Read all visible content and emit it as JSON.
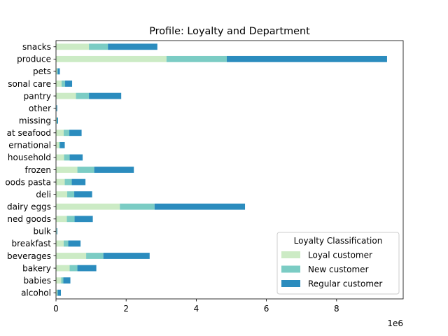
{
  "chart_data": {
    "type": "bar",
    "orientation": "horizontal",
    "stacked": true,
    "title": "Profile: Loyalty and Department",
    "xlabel": "",
    "ylabel": "",
    "x_scale_label": "1e6",
    "xlim": [
      0,
      9900000
    ],
    "x_ticks": [
      0,
      2000000,
      4000000,
      6000000,
      8000000
    ],
    "x_tick_labels": [
      "0",
      "2",
      "4",
      "6",
      "8"
    ],
    "grid": false,
    "legend": {
      "title": "Loyalty Classification",
      "placement": "lower-right"
    },
    "categories": [
      "alcohol",
      "babies",
      "bakery",
      "beverages",
      "breakfast",
      "bulk",
      "canned goods",
      "dairy eggs",
      "deli",
      "dry goods pasta",
      "frozen",
      "household",
      "international",
      "meat seafood",
      "missing",
      "other",
      "pantry",
      "personal care",
      "pets",
      "produce",
      "snacks"
    ],
    "category_labels": [
      "alcohol",
      "babies",
      "bakery",
      "beverages",
      "breakfast",
      "bulk",
      "ned goods",
      "dairy eggs",
      "deli",
      "oods pasta",
      "frozen",
      "household",
      "ernational",
      "at seafood",
      "missing",
      "other",
      "pantry",
      "sonal care",
      "pets",
      "produce",
      "snacks"
    ],
    "series": [
      {
        "name": "Loyal customer",
        "color": "#ccebc5",
        "values": [
          30000,
          150000,
          390000,
          860000,
          220000,
          15000,
          310000,
          1820000,
          320000,
          250000,
          610000,
          230000,
          80000,
          220000,
          20000,
          10000,
          570000,
          160000,
          30000,
          3150000,
          940000
        ]
      },
      {
        "name": "New customer",
        "color": "#7bccc4",
        "values": [
          20000,
          60000,
          220000,
          490000,
          130000,
          10000,
          220000,
          990000,
          200000,
          200000,
          480000,
          160000,
          40000,
          160000,
          10000,
          5000,
          370000,
          100000,
          20000,
          1720000,
          540000
        ]
      },
      {
        "name": "Regular customer",
        "color": "#2b8cbe",
        "values": [
          90000,
          200000,
          540000,
          1320000,
          350000,
          15000,
          520000,
          2580000,
          510000,
          390000,
          1130000,
          370000,
          130000,
          350000,
          30000,
          20000,
          920000,
          200000,
          60000,
          4570000,
          1410000
        ]
      }
    ]
  }
}
